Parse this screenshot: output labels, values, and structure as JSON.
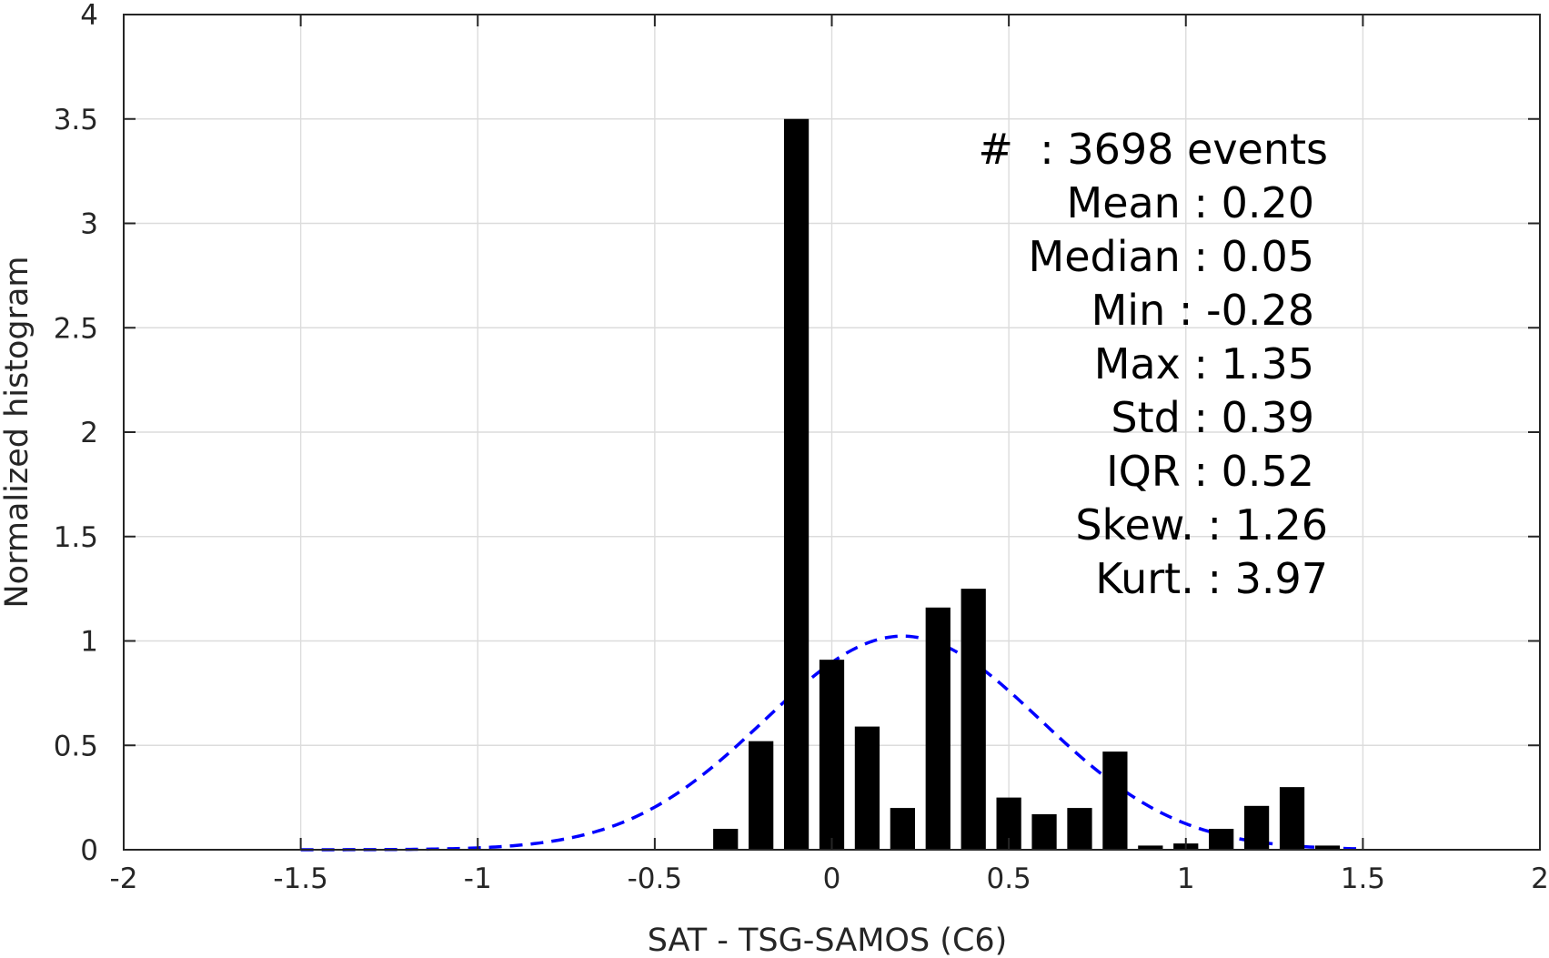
{
  "chart_data": {
    "type": "bar",
    "title": "",
    "xlabel": "SAT - TSG-SAMOS (C6)",
    "ylabel": "Normalized histogram",
    "xlim": [
      -2,
      2
    ],
    "ylim": [
      0,
      4
    ],
    "grid": true,
    "x_ticks": [
      -2,
      -1.5,
      -1,
      -0.5,
      0,
      0.5,
      1,
      1.5,
      2
    ],
    "x_tick_labels": [
      "-2",
      "-1.5",
      "-1",
      "-0.5",
      "0",
      "0.5",
      "1",
      "1.5",
      "2"
    ],
    "y_ticks": [
      0,
      0.5,
      1,
      1.5,
      2,
      2.5,
      3,
      3.5,
      4
    ],
    "y_tick_labels": [
      "0",
      "0.5",
      "1",
      "1.5",
      "2",
      "2.5",
      "3",
      "3.5",
      "4"
    ],
    "bar_color": "#000000",
    "bar_width": 0.07,
    "bins": {
      "centers": [
        -0.3,
        -0.2,
        -0.1,
        0.0,
        0.1,
        0.2,
        0.3,
        0.4,
        0.5,
        0.6,
        0.7,
        0.8,
        0.9,
        1.0,
        1.1,
        1.2,
        1.3,
        1.4
      ],
      "values": [
        0.1,
        0.52,
        3.5,
        0.91,
        0.59,
        0.2,
        1.16,
        1.25,
        0.25,
        0.17,
        0.2,
        0.47,
        0.02,
        0.03,
        0.1,
        0.21,
        0.3,
        0.02
      ]
    },
    "fit": {
      "type": "normal",
      "mean": 0.2,
      "std": 0.39,
      "x_range": [
        -1.5,
        1.5
      ],
      "color": "#0000ff",
      "style": "dashed"
    },
    "annotation": {
      "placement": "top-right",
      "lines": [
        "#  : 3698 events",
        "Mean : 0.20",
        "Median : 0.05",
        "Min : -0.28",
        "Max : 1.35",
        "Std : 0.39",
        "IQR : 0.52",
        "Skew. : 1.26",
        "Kurt. : 3.97"
      ]
    }
  }
}
